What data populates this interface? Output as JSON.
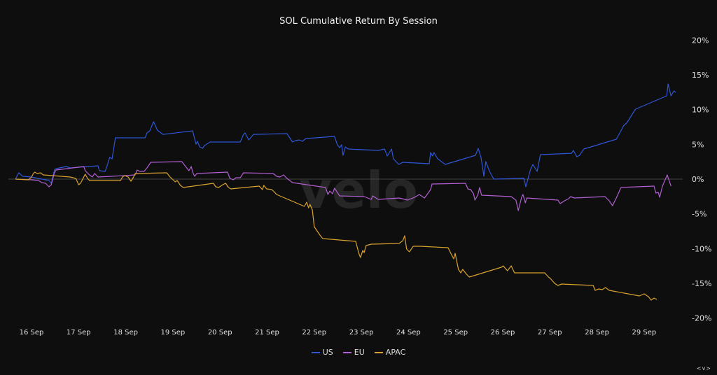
{
  "chart_data": {
    "type": "line",
    "title": "SOL Cumulative Return By Session",
    "xlabel": "",
    "ylabel": "",
    "x_unit": "day of September",
    "xlim": [
      15.66,
      29.7
    ],
    "ylim": [
      -20,
      20
    ],
    "x_ticks": [
      16,
      17,
      18,
      19,
      20,
      21,
      22,
      23,
      24,
      25,
      26,
      27,
      28,
      29
    ],
    "x_tick_labels": [
      "16 Sep",
      "17 Sep",
      "18 Sep",
      "19 Sep",
      "20 Sep",
      "21 Sep",
      "22 Sep",
      "23 Sep",
      "24 Sep",
      "25 Sep",
      "26 Sep",
      "27 Sep",
      "28 Sep",
      "29 Sep"
    ],
    "y_ticks": [
      20,
      15,
      10,
      5,
      0,
      -5,
      -10,
      -15,
      -20
    ],
    "y_tick_labels": [
      "20%",
      "15%",
      "10%",
      "5%",
      "0%",
      "-5%",
      "-10%",
      "-15%",
      "-20%"
    ],
    "y_axis_side": "right",
    "grid": false,
    "zero_line": true,
    "legend_position": "bottom",
    "watermark": "velo",
    "series": [
      {
        "name": "US",
        "color": "#2f56d6",
        "points": [
          [
            15.66,
            0
          ],
          [
            15.73,
            0.91
          ],
          [
            15.81,
            0.4
          ],
          [
            16.0,
            0.3
          ],
          [
            16.22,
            0
          ],
          [
            16.37,
            -0.2
          ],
          [
            16.42,
            -0.6
          ],
          [
            16.49,
            1.41
          ],
          [
            16.59,
            1.61
          ],
          [
            16.74,
            1.81
          ],
          [
            16.82,
            1.61
          ],
          [
            17.41,
            1.91
          ],
          [
            17.44,
            1.21
          ],
          [
            17.56,
            1.11
          ],
          [
            17.59,
            1.61
          ],
          [
            17.66,
            3.12
          ],
          [
            17.71,
            2.92
          ],
          [
            17.78,
            5.94
          ],
          [
            18.41,
            5.94
          ],
          [
            18.45,
            6.65
          ],
          [
            18.51,
            6.95
          ],
          [
            18.59,
            8.26
          ],
          [
            18.63,
            7.65
          ],
          [
            18.67,
            7.05
          ],
          [
            18.79,
            6.44
          ],
          [
            19.42,
            6.95
          ],
          [
            19.49,
            5.03
          ],
          [
            19.52,
            5.44
          ],
          [
            19.57,
            4.63
          ],
          [
            19.63,
            4.43
          ],
          [
            19.67,
            4.83
          ],
          [
            19.79,
            5.34
          ],
          [
            20.43,
            5.34
          ],
          [
            20.5,
            6.44
          ],
          [
            20.53,
            6.65
          ],
          [
            20.61,
            5.64
          ],
          [
            20.65,
            5.94
          ],
          [
            20.71,
            6.44
          ],
          [
            21.42,
            6.55
          ],
          [
            21.54,
            5.34
          ],
          [
            21.6,
            5.54
          ],
          [
            21.68,
            5.64
          ],
          [
            21.75,
            5.44
          ],
          [
            21.82,
            5.84
          ],
          [
            22.43,
            6.14
          ],
          [
            22.49,
            4.93
          ],
          [
            22.54,
            4.53
          ],
          [
            22.58,
            4.93
          ],
          [
            22.61,
            3.42
          ],
          [
            22.66,
            4.63
          ],
          [
            22.72,
            4.33
          ],
          [
            23.36,
            4.13
          ],
          [
            23.49,
            4.33
          ],
          [
            23.55,
            3.32
          ],
          [
            23.64,
            4.33
          ],
          [
            23.68,
            2.92
          ],
          [
            23.79,
            2.11
          ],
          [
            23.88,
            2.42
          ],
          [
            24.44,
            2.22
          ],
          [
            24.47,
            3.83
          ],
          [
            24.51,
            3.32
          ],
          [
            24.54,
            3.83
          ],
          [
            24.62,
            2.92
          ],
          [
            24.78,
            2.11
          ],
          [
            25.42,
            3.42
          ],
          [
            25.48,
            4.43
          ],
          [
            25.54,
            3.12
          ],
          [
            25.6,
            0.4
          ],
          [
            25.64,
            2.52
          ],
          [
            25.72,
            1.11
          ],
          [
            25.81,
            0
          ],
          [
            26.45,
            0.1
          ],
          [
            26.49,
            -1.11
          ],
          [
            26.59,
            1.41
          ],
          [
            26.64,
            2.11
          ],
          [
            26.73,
            1.11
          ],
          [
            26.8,
            3.52
          ],
          [
            27.46,
            3.72
          ],
          [
            27.5,
            4.13
          ],
          [
            27.57,
            3.22
          ],
          [
            27.63,
            3.42
          ],
          [
            27.72,
            4.33
          ],
          [
            28.41,
            5.74
          ],
          [
            28.5,
            6.85
          ],
          [
            28.56,
            7.65
          ],
          [
            28.64,
            8.16
          ],
          [
            28.76,
            9.47
          ],
          [
            28.82,
            10.07
          ],
          [
            29.48,
            11.98
          ],
          [
            29.51,
            13.7
          ],
          [
            29.57,
            11.98
          ],
          [
            29.63,
            12.69
          ],
          [
            29.67,
            12.49
          ]
        ]
      },
      {
        "name": "EU",
        "color": "#b25fd2",
        "points": [
          [
            15.66,
            0
          ],
          [
            16.0,
            -0.1
          ],
          [
            16.15,
            -0.2
          ],
          [
            16.22,
            -0.5
          ],
          [
            16.3,
            -0.6
          ],
          [
            16.37,
            -1.11
          ],
          [
            16.42,
            -0.81
          ],
          [
            16.48,
            0.81
          ],
          [
            16.52,
            1.31
          ],
          [
            17.11,
            1.81
          ],
          [
            17.14,
            1.21
          ],
          [
            17.23,
            0.6
          ],
          [
            17.29,
            0.3
          ],
          [
            17.34,
            0.81
          ],
          [
            17.41,
            0.3
          ],
          [
            17.98,
            0.5
          ],
          [
            18.2,
            0.6
          ],
          [
            18.24,
            1.31
          ],
          [
            18.3,
            1.11
          ],
          [
            18.39,
            1.11
          ],
          [
            18.45,
            1.61
          ],
          [
            18.53,
            2.42
          ],
          [
            19.19,
            2.52
          ],
          [
            19.27,
            1.81
          ],
          [
            19.34,
            1.21
          ],
          [
            19.39,
            1.81
          ],
          [
            19.42,
            1.01
          ],
          [
            19.46,
            0.4
          ],
          [
            19.51,
            0.81
          ],
          [
            20.16,
            1.01
          ],
          [
            20.21,
            0.1
          ],
          [
            20.28,
            -0.1
          ],
          [
            20.34,
            0.2
          ],
          [
            20.43,
            0.2
          ],
          [
            20.5,
            0.91
          ],
          [
            21.13,
            0.81
          ],
          [
            21.2,
            0.4
          ],
          [
            21.27,
            0.3
          ],
          [
            21.35,
            0.6
          ],
          [
            21.42,
            0.1
          ],
          [
            21.54,
            -0.5
          ],
          [
            22.24,
            -1.21
          ],
          [
            22.29,
            -2.22
          ],
          [
            22.33,
            -1.71
          ],
          [
            22.39,
            -2.11
          ],
          [
            22.43,
            -1.31
          ],
          [
            22.54,
            -2.42
          ],
          [
            23.06,
            -2.52
          ],
          [
            23.21,
            -2.92
          ],
          [
            23.24,
            -2.42
          ],
          [
            23.36,
            -2.92
          ],
          [
            23.8,
            -2.72
          ],
          [
            23.98,
            -3.02
          ],
          [
            24.13,
            -2.62
          ],
          [
            24.23,
            -2.22
          ],
          [
            24.34,
            -2.72
          ],
          [
            24.47,
            -1.51
          ],
          [
            24.5,
            -0.7
          ],
          [
            25.21,
            -0.6
          ],
          [
            25.26,
            -1.41
          ],
          [
            25.32,
            -1.51
          ],
          [
            25.38,
            -2.11
          ],
          [
            25.41,
            -3.02
          ],
          [
            25.47,
            -2.32
          ],
          [
            25.51,
            -1.21
          ],
          [
            25.55,
            -2.32
          ],
          [
            26.18,
            -2.52
          ],
          [
            26.28,
            -3.02
          ],
          [
            26.33,
            -4.53
          ],
          [
            26.4,
            -2.62
          ],
          [
            26.43,
            -2.22
          ],
          [
            26.48,
            -3.42
          ],
          [
            26.51,
            -2.72
          ],
          [
            27.17,
            -3.02
          ],
          [
            27.22,
            -3.52
          ],
          [
            27.31,
            -3.12
          ],
          [
            27.4,
            -2.82
          ],
          [
            27.44,
            -2.52
          ],
          [
            27.52,
            -2.72
          ],
          [
            28.17,
            -2.52
          ],
          [
            28.26,
            -3.12
          ],
          [
            28.33,
            -3.83
          ],
          [
            28.41,
            -2.72
          ],
          [
            28.51,
            -1.21
          ],
          [
            29.21,
            -1.01
          ],
          [
            29.25,
            -2.01
          ],
          [
            29.3,
            -1.91
          ],
          [
            29.33,
            -2.62
          ],
          [
            29.39,
            -1.01
          ],
          [
            29.49,
            0.6
          ],
          [
            29.57,
            -1.01
          ]
        ]
      },
      {
        "name": "APAC",
        "color": "#d9a22e",
        "points": [
          [
            15.66,
            0
          ],
          [
            15.93,
            -0.1
          ],
          [
            15.97,
            0.1
          ],
          [
            16.0,
            0.3
          ],
          [
            16.04,
            0.81
          ],
          [
            16.07,
            1.01
          ],
          [
            16.12,
            0.81
          ],
          [
            16.19,
            0.91
          ],
          [
            16.25,
            0.6
          ],
          [
            16.82,
            0.3
          ],
          [
            16.94,
            0.1
          ],
          [
            17.0,
            -0.81
          ],
          [
            17.04,
            -0.6
          ],
          [
            17.14,
            0.7
          ],
          [
            17.19,
            0.1
          ],
          [
            17.23,
            -0.2
          ],
          [
            17.89,
            -0.2
          ],
          [
            17.93,
            0.3
          ],
          [
            17.98,
            0.5
          ],
          [
            18.05,
            0.3
          ],
          [
            18.11,
            -0.3
          ],
          [
            18.15,
            0.1
          ],
          [
            18.2,
            0.81
          ],
          [
            18.87,
            0.91
          ],
          [
            18.94,
            0.3
          ],
          [
            19.02,
            -0.2
          ],
          [
            19.05,
            -0.4
          ],
          [
            19.09,
            -0.2
          ],
          [
            19.16,
            -0.91
          ],
          [
            19.22,
            -1.21
          ],
          [
            19.86,
            -0.6
          ],
          [
            19.91,
            -1.11
          ],
          [
            19.97,
            -1.21
          ],
          [
            20.06,
            -0.81
          ],
          [
            20.12,
            -0.6
          ],
          [
            20.18,
            -1.21
          ],
          [
            20.23,
            -1.41
          ],
          [
            20.83,
            -1.01
          ],
          [
            20.9,
            -1.51
          ],
          [
            20.93,
            -0.91
          ],
          [
            20.99,
            -1.41
          ],
          [
            21.1,
            -1.51
          ],
          [
            21.16,
            -1.91
          ],
          [
            21.2,
            -2.22
          ],
          [
            21.79,
            -3.93
          ],
          [
            21.84,
            -3.32
          ],
          [
            21.88,
            -4.13
          ],
          [
            21.91,
            -3.63
          ],
          [
            21.96,
            -4.43
          ],
          [
            22.0,
            -6.85
          ],
          [
            22.03,
            -7.15
          ],
          [
            22.12,
            -8.06
          ],
          [
            22.18,
            -8.56
          ],
          [
            22.88,
            -8.96
          ],
          [
            22.95,
            -10.77
          ],
          [
            22.98,
            -11.28
          ],
          [
            23.03,
            -10.27
          ],
          [
            23.06,
            -10.57
          ],
          [
            23.1,
            -9.57
          ],
          [
            23.21,
            -9.37
          ],
          [
            23.8,
            -9.26
          ],
          [
            23.88,
            -8.86
          ],
          [
            23.92,
            -8.16
          ],
          [
            23.96,
            -10.07
          ],
          [
            24.02,
            -10.47
          ],
          [
            24.1,
            -9.67
          ],
          [
            24.25,
            -9.67
          ],
          [
            24.84,
            -9.87
          ],
          [
            24.92,
            -10.98
          ],
          [
            24.96,
            -11.48
          ],
          [
            24.99,
            -10.67
          ],
          [
            25.06,
            -12.99
          ],
          [
            25.11,
            -13.49
          ],
          [
            25.15,
            -12.99
          ],
          [
            25.23,
            -13.69
          ],
          [
            25.29,
            -14.1
          ],
          [
            25.97,
            -12.69
          ],
          [
            26.01,
            -12.49
          ],
          [
            26.1,
            -13.19
          ],
          [
            26.18,
            -12.49
          ],
          [
            26.25,
            -13.49
          ],
          [
            26.89,
            -13.49
          ],
          [
            26.97,
            -14.1
          ],
          [
            27.01,
            -14.3
          ],
          [
            27.1,
            -15.0
          ],
          [
            27.17,
            -15.31
          ],
          [
            27.25,
            -15.11
          ],
          [
            27.92,
            -15.31
          ],
          [
            27.96,
            -16.01
          ],
          [
            28.04,
            -15.81
          ],
          [
            28.11,
            -15.91
          ],
          [
            28.18,
            -15.61
          ],
          [
            28.26,
            -16.01
          ],
          [
            28.9,
            -16.82
          ],
          [
            29.0,
            -16.52
          ],
          [
            29.09,
            -16.92
          ],
          [
            29.15,
            -17.42
          ],
          [
            29.21,
            -17.12
          ],
          [
            29.27,
            -17.32
          ]
        ]
      }
    ]
  },
  "legend": {
    "items": [
      {
        "label": "US",
        "color": "#2f56d6"
      },
      {
        "label": "EU",
        "color": "#b25fd2"
      },
      {
        "label": "APAC",
        "color": "#d9a22e"
      }
    ]
  },
  "nav_label": "<v>"
}
